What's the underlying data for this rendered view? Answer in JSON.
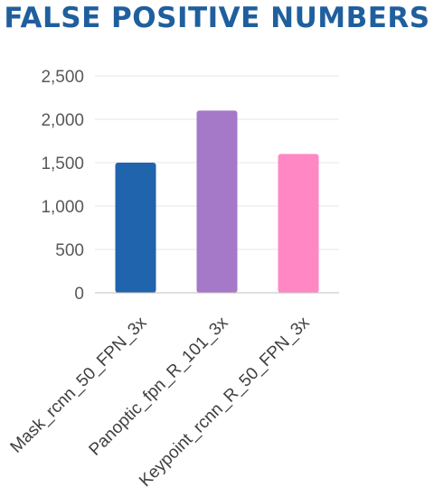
{
  "chart_data": {
    "type": "bar",
    "title": "FALSE POSITIVE NUMBERS",
    "categories": [
      "Mask_rcnn_50_FPN_3x",
      "Panoptic_fpn_R_101_3x",
      "Keypoint_rcnn_R_50_FPN_3x"
    ],
    "values": [
      1500,
      2100,
      1600
    ],
    "colors": [
      "#1f64ac",
      "#a678c8",
      "#ff88c4"
    ],
    "ylim": [
      0,
      2500
    ],
    "yticks": [
      0,
      500,
      1000,
      1500,
      2000,
      2500
    ],
    "ytick_labels": [
      "0",
      "500",
      "1,000",
      "1,500",
      "2,000",
      "2,500"
    ],
    "xlabel": "",
    "ylabel": "",
    "grid": true,
    "legend": "none"
  }
}
